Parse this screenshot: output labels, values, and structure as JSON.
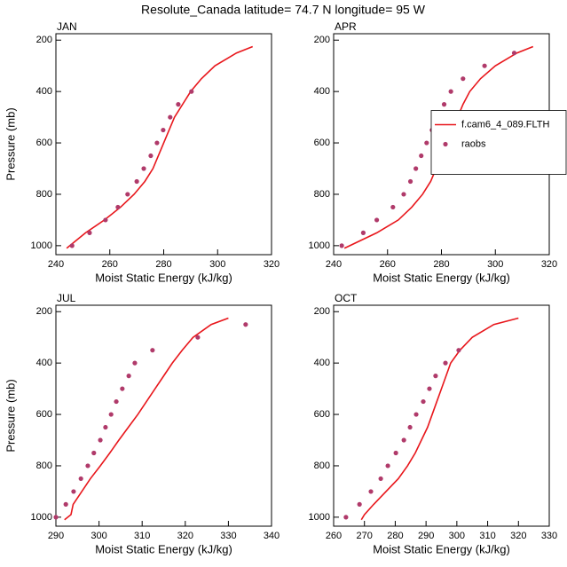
{
  "title": "Resolute_Canada  latitude= 74.7 N longitude= 95 W",
  "chart_data": [
    {
      "type": "line",
      "title": "JAN",
      "xlabel": "Moist Static Energy (kJ/kg)",
      "ylabel": "Pressure (mb)",
      "xlim": [
        240,
        320
      ],
      "xticks": [
        240,
        260,
        280,
        300,
        320
      ],
      "ylim": [
        1035,
        175
      ],
      "yticks": [
        200,
        400,
        600,
        800,
        1000
      ],
      "series": [
        {
          "color": "#e8161b",
          "style": "line",
          "x": [
            244,
            251,
            258,
            264,
            269,
            273,
            276,
            278,
            280,
            282,
            284,
            287,
            290,
            294,
            299,
            307,
            313
          ],
          "values": [
            1010,
            950,
            900,
            850,
            800,
            750,
            700,
            650,
            600,
            550,
            500,
            450,
            400,
            350,
            300,
            250,
            225
          ]
        },
        {
          "color": "#b03a6a",
          "style": "marker",
          "x": [
            246,
            252.5,
            258.4,
            263,
            266.6,
            270,
            272.6,
            275.2,
            277.5,
            279.8,
            282.4,
            285.4,
            290.3
          ],
          "values": [
            1000,
            950,
            900,
            850,
            800,
            750,
            700,
            650,
            600,
            550,
            500,
            450,
            400
          ]
        }
      ]
    },
    {
      "type": "line",
      "title": "APR",
      "xlabel": "Moist Static Energy (kJ/kg)",
      "xlim": [
        240,
        320
      ],
      "xticks": [
        240,
        260,
        280,
        300,
        320
      ],
      "ylim": [
        1035,
        175
      ],
      "yticks": [
        200,
        400,
        600,
        800,
        1000
      ],
      "legend": "right",
      "series": [
        {
          "name": "f.cam6_4_089.FLTH",
          "color": "#e8161b",
          "style": "line",
          "x": [
            244,
            256,
            264,
            269,
            273,
            276,
            278,
            280,
            282,
            284,
            286,
            288,
            290.5,
            294.5,
            300,
            308,
            314
          ],
          "values": [
            1010,
            950,
            900,
            850,
            800,
            750,
            700,
            650,
            600,
            550,
            500,
            450,
            400,
            350,
            300,
            250,
            225
          ]
        },
        {
          "name": "raobs",
          "color": "#b03a6a",
          "style": "marker",
          "x": [
            243,
            251,
            256,
            262,
            266,
            268.5,
            270.5,
            272.5,
            274.5,
            276.5,
            279,
            281,
            283.5,
            288,
            296,
            307
          ],
          "values": [
            1000,
            950,
            900,
            850,
            800,
            750,
            700,
            650,
            600,
            550,
            500,
            450,
            400,
            350,
            300,
            250
          ]
        }
      ]
    },
    {
      "type": "line",
      "title": "JUL",
      "xlabel": "Moist Static Energy (kJ/kg)",
      "ylabel": "Pressure (mb)",
      "xlim": [
        290,
        340
      ],
      "xticks": [
        290,
        300,
        310,
        320,
        330,
        340
      ],
      "ylim": [
        1035,
        175
      ],
      "yticks": [
        200,
        400,
        600,
        800,
        1000
      ],
      "series": [
        {
          "color": "#e8161b",
          "style": "line",
          "x": [
            292,
            293.5,
            294,
            296,
            298,
            300.3,
            302.5,
            304.6,
            306.8,
            309,
            311,
            313,
            315,
            317,
            319.3,
            321.8,
            326,
            330
          ],
          "values": [
            1010,
            990,
            950,
            900,
            850,
            800,
            750,
            700,
            650,
            600,
            550,
            500,
            450,
            400,
            350,
            300,
            250,
            225
          ]
        },
        {
          "color": "#b03a6a",
          "style": "marker",
          "x": [
            290,
            292.3,
            294.1,
            295.8,
            297.4,
            298.8,
            300.3,
            301.5,
            302.8,
            304,
            305.4,
            306.9,
            308.3,
            312.4,
            322.9,
            334
          ],
          "values": [
            1000,
            950,
            900,
            850,
            800,
            750,
            700,
            650,
            600,
            550,
            500,
            450,
            400,
            350,
            300,
            250
          ]
        }
      ]
    },
    {
      "type": "line",
      "title": "OCT",
      "xlabel": "Moist Static Energy (kJ/kg)",
      "xlim": [
        260,
        330
      ],
      "xticks": [
        260,
        270,
        280,
        290,
        300,
        310,
        320,
        330
      ],
      "ylim": [
        1035,
        175
      ],
      "yticks": [
        200,
        400,
        600,
        800,
        1000
      ],
      "series": [
        {
          "color": "#e8161b",
          "style": "line",
          "x": [
            269,
            270,
            273,
            277,
            281,
            284,
            286.5,
            288.5,
            290.5,
            292,
            293.5,
            295,
            296.5,
            298,
            301,
            305,
            312,
            320
          ],
          "values": [
            1010,
            990,
            950,
            900,
            850,
            800,
            750,
            700,
            650,
            600,
            550,
            500,
            450,
            400,
            350,
            300,
            250,
            225
          ]
        },
        {
          "color": "#b03a6a",
          "style": "marker",
          "x": [
            264,
            268.4,
            272.1,
            275.3,
            277.6,
            280.2,
            282.8,
            284.8,
            286.8,
            289.1,
            291.1,
            293.1,
            296.3,
            300.6
          ],
          "values": [
            1000,
            950,
            900,
            850,
            800,
            750,
            700,
            650,
            600,
            550,
            500,
            450,
            400,
            350
          ]
        }
      ]
    }
  ]
}
